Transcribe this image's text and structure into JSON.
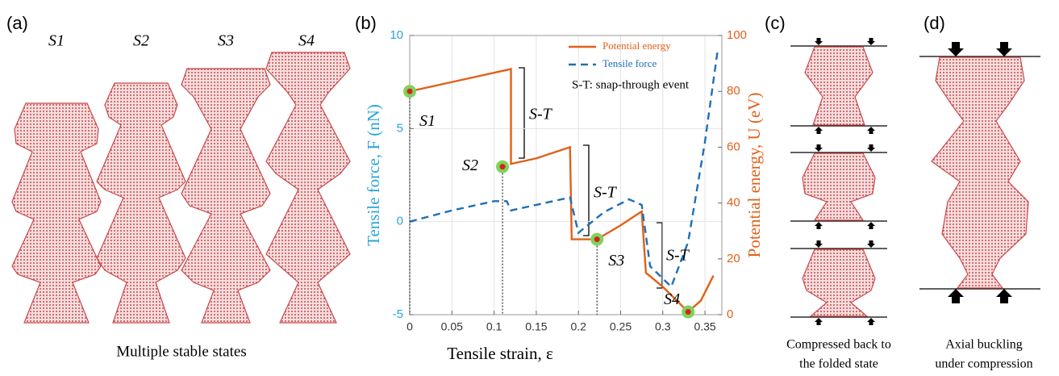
{
  "panels": {
    "a": {
      "label": "(a)",
      "states": [
        "S1",
        "S2",
        "S3",
        "S4"
      ],
      "caption": "Multiple stable states"
    },
    "b": {
      "label": "(b)"
    },
    "c": {
      "label": "(c)",
      "caption_lines": [
        "Compressed back to",
        "the folded state"
      ]
    },
    "d": {
      "label": "(d)",
      "caption_lines": [
        "Axial buckling",
        "under compression"
      ]
    }
  },
  "chart_data": {
    "type": "line",
    "xlabel": "Tensile strain, ε",
    "ylabel": "Tensile force, F (nN)",
    "y2label": "Potential energy, U (eV)",
    "xlim": [
      0,
      0.37
    ],
    "xticks": [
      0,
      0.05,
      0.1,
      0.15,
      0.2,
      0.25,
      0.3,
      0.35
    ],
    "ylim": [
      -5,
      10
    ],
    "yticks": [
      -5,
      0,
      5,
      10
    ],
    "y2lim": [
      0,
      100
    ],
    "y2ticks": [
      0,
      20,
      40,
      60,
      80,
      100
    ],
    "grid": true,
    "legend": "upper right",
    "series": [
      {
        "name": "Potential energy",
        "color": "#e0601a",
        "axis": "y2",
        "style": "solid",
        "x": [
          0,
          0.06,
          0.12,
          0.12,
          0.15,
          0.19,
          0.192,
          0.222,
          0.25,
          0.275,
          0.28,
          0.3,
          0.33,
          0.345,
          0.36
        ],
        "values": [
          80,
          84,
          88,
          54,
          56,
          60,
          27,
          27,
          32,
          37,
          15,
          10,
          1,
          5,
          14
        ]
      },
      {
        "name": "Tensile force",
        "color": "#1f6fb5",
        "style": "dashed",
        "x": [
          0,
          0.05,
          0.1,
          0.115,
          0.12,
          0.15,
          0.19,
          0.2,
          0.23,
          0.26,
          0.275,
          0.285,
          0.31,
          0.33,
          0.35,
          0.365
        ],
        "values": [
          0,
          0.6,
          1.1,
          1.1,
          0.6,
          0.9,
          1.3,
          -0.6,
          0.5,
          1.2,
          0.9,
          -2.4,
          -3.5,
          -1.1,
          4.3,
          9.2
        ]
      }
    ],
    "states": [
      {
        "label": "S1",
        "x": 0,
        "value": 80
      },
      {
        "label": "S2",
        "x": 0.11,
        "value": 53
      },
      {
        "label": "S3",
        "x": 0.222,
        "value": 27
      },
      {
        "label": "S4",
        "x": 0.33,
        "value": 1
      }
    ],
    "note": "S-T: snap-through event",
    "annotations": [
      "S-T",
      "S-T",
      "S-T"
    ]
  }
}
